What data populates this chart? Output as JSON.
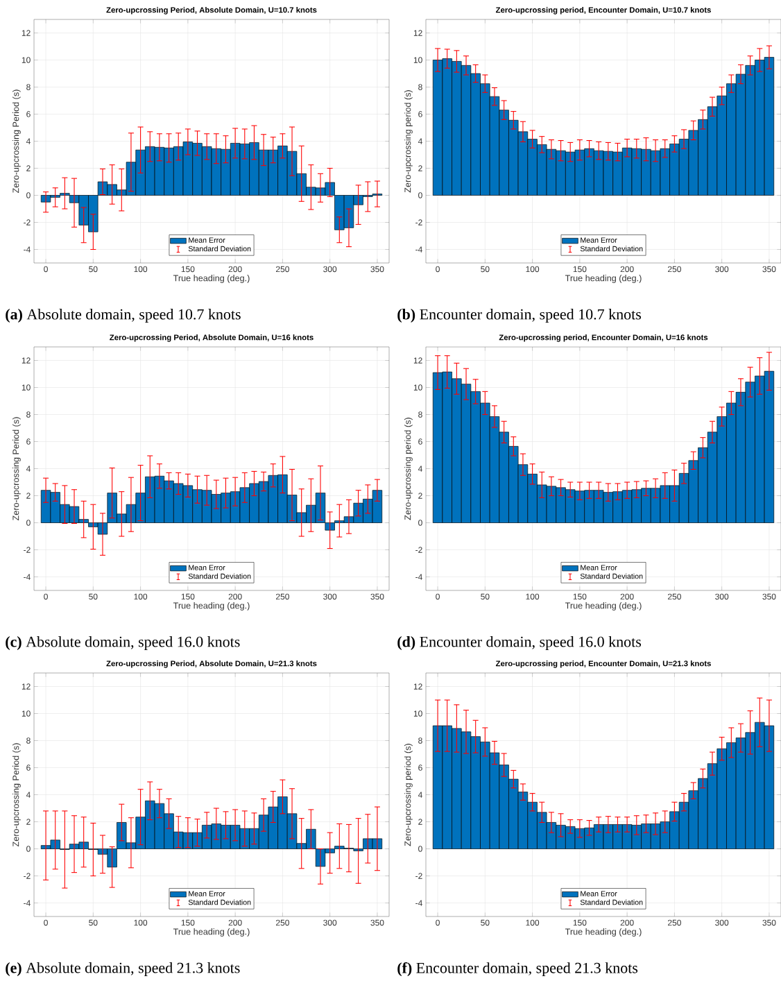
{
  "chart_data": [
    {
      "type": "bar",
      "title": "Zero-upcrossing Period, Absolute Domain, U=10.7 knots",
      "xlabel": "True heading (deg.)",
      "ylabel": "Zero-upcrossing Period (s)",
      "x": [
        0,
        10,
        20,
        30,
        40,
        50,
        60,
        70,
        80,
        90,
        100,
        110,
        120,
        130,
        140,
        150,
        160,
        170,
        180,
        190,
        200,
        210,
        220,
        230,
        240,
        250,
        260,
        270,
        280,
        290,
        300,
        310,
        320,
        330,
        340,
        350
      ],
      "xlim": [
        -12.5,
        362.5
      ],
      "ylim": [
        -5,
        13
      ],
      "xticks": [
        0,
        50,
        100,
        150,
        200,
        250,
        300,
        350
      ],
      "yticks": [
        -4,
        -2,
        0,
        2,
        4,
        6,
        8,
        10,
        12
      ],
      "grid": true,
      "legend": "bottom",
      "annotations": [
        "Standard Deviation",
        "**(a)** Absolute domain, speed 10.7 knots"
      ],
      "series": [
        {
          "name": "Mean Error",
          "color": "#0072bd",
          "values": [
            -0.5,
            -0.15,
            0.15,
            -0.55,
            -2.2,
            -2.7,
            1.0,
            0.8,
            0.4,
            2.45,
            3.35,
            3.6,
            3.55,
            3.5,
            3.6,
            3.95,
            3.85,
            3.6,
            3.45,
            3.4,
            3.85,
            3.8,
            3.9,
            3.35,
            3.35,
            3.65,
            3.25,
            1.6,
            0.6,
            0.55,
            0.95,
            -2.55,
            -2.4,
            -0.7,
            -0.1,
            0.1
          ],
          "errors": [
            0.75,
            0.7,
            1.15,
            1.8,
            1.3,
            1.3,
            0.95,
            1.45,
            1.55,
            2.15,
            1.7,
            1.1,
            1.0,
            1.05,
            1.0,
            0.95,
            0.9,
            0.95,
            1.1,
            1.0,
            1.1,
            1.1,
            1.25,
            1.15,
            0.95,
            0.9,
            1.8,
            2.05,
            1.65,
            1.05,
            1.05,
            0.95,
            1.4,
            1.45,
            1.1,
            0.95
          ]
        }
      ]
    },
    {
      "type": "bar",
      "title": "Zero-upcrossing period, Encounter Domain, U=10.7 knots",
      "xlabel": "True heading (deg.)",
      "ylabel": "Zero-upcrossing period (s)",
      "x": [
        0,
        10,
        20,
        30,
        40,
        50,
        60,
        70,
        80,
        90,
        100,
        110,
        120,
        130,
        140,
        150,
        160,
        170,
        180,
        190,
        200,
        210,
        220,
        230,
        240,
        250,
        260,
        270,
        280,
        290,
        300,
        310,
        320,
        330,
        340,
        350
      ],
      "xlim": [
        -12.5,
        362.5
      ],
      "ylim": [
        -5,
        13
      ],
      "xticks": [
        0,
        50,
        100,
        150,
        200,
        250,
        300,
        350
      ],
      "yticks": [
        -4,
        -2,
        0,
        2,
        4,
        6,
        8,
        10,
        12
      ],
      "grid": true,
      "legend": "bottom",
      "annotations": [
        "Standard Deviation",
        "**(b)** Encounter domain, speed 10.7 knots"
      ],
      "series": [
        {
          "name": "Mean Error",
          "color": "#0072bd",
          "values": [
            10.0,
            10.1,
            9.9,
            9.6,
            9.0,
            8.25,
            7.3,
            6.3,
            5.55,
            4.7,
            4.15,
            3.75,
            3.4,
            3.3,
            3.2,
            3.35,
            3.45,
            3.3,
            3.25,
            3.2,
            3.5,
            3.45,
            3.4,
            3.3,
            3.45,
            3.8,
            4.15,
            4.8,
            5.6,
            6.55,
            7.35,
            8.25,
            8.95,
            9.6,
            10.0,
            10.2
          ],
          "errors": [
            0.85,
            0.7,
            0.8,
            0.7,
            0.65,
            0.65,
            0.65,
            0.7,
            0.65,
            0.75,
            0.65,
            0.6,
            0.7,
            0.75,
            0.7,
            0.75,
            0.6,
            0.65,
            0.65,
            0.65,
            0.65,
            0.7,
            0.85,
            0.8,
            0.65,
            0.6,
            0.7,
            0.7,
            0.7,
            0.7,
            0.65,
            0.65,
            0.7,
            0.7,
            0.85,
            0.85
          ]
        }
      ]
    },
    {
      "type": "bar",
      "title": "Zero-upcrossing Period, Absolute Domain, U=16 knots",
      "xlabel": "True heading (deg.)",
      "ylabel": "Zero-upcrossing Period (s)",
      "x": [
        0,
        10,
        20,
        30,
        40,
        50,
        60,
        70,
        80,
        90,
        100,
        110,
        120,
        130,
        140,
        150,
        160,
        170,
        180,
        190,
        200,
        210,
        220,
        230,
        240,
        250,
        260,
        270,
        280,
        290,
        300,
        310,
        320,
        330,
        340,
        350
      ],
      "xlim": [
        -12.5,
        362.5
      ],
      "ylim": [
        -5,
        13
      ],
      "xticks": [
        0,
        50,
        100,
        150,
        200,
        250,
        300,
        350
      ],
      "yticks": [
        -4,
        -2,
        0,
        2,
        4,
        6,
        8,
        10,
        12
      ],
      "grid": true,
      "legend": "bottom",
      "annotations": [
        "Standard Deviation",
        "**(c)** Absolute domain, speed 16.0 knots"
      ],
      "series": [
        {
          "name": "Mean Error",
          "color": "#0072bd",
          "values": [
            2.4,
            2.25,
            1.35,
            1.2,
            0.25,
            -0.3,
            -0.85,
            2.2,
            0.65,
            1.35,
            2.2,
            3.4,
            3.45,
            3.1,
            2.9,
            2.75,
            2.45,
            2.4,
            2.1,
            2.2,
            2.3,
            2.6,
            2.9,
            3.05,
            3.5,
            3.55,
            2.05,
            0.75,
            1.3,
            2.2,
            -0.55,
            0.15,
            0.45,
            1.45,
            1.75,
            2.4
          ],
          "errors": [
            0.9,
            0.65,
            1.4,
            1.25,
            1.35,
            1.65,
            1.55,
            1.85,
            1.65,
            2.0,
            2.05,
            1.55,
            0.9,
            0.6,
            0.8,
            0.85,
            1.0,
            1.1,
            1.05,
            1.1,
            1.05,
            1.1,
            0.9,
            0.7,
            0.85,
            1.35,
            1.9,
            1.75,
            1.95,
            2.0,
            1.35,
            1.2,
            1.25,
            0.95,
            1.05,
            0.8
          ]
        }
      ]
    },
    {
      "type": "bar",
      "title": "Zero-upcrossing period, Encounter Domain, U=16 knots",
      "xlabel": "True heading (deg.)",
      "ylabel": "Zero-upcrossing period (s)",
      "x": [
        0,
        10,
        20,
        30,
        40,
        50,
        60,
        70,
        80,
        90,
        100,
        110,
        120,
        130,
        140,
        150,
        160,
        170,
        180,
        190,
        200,
        210,
        220,
        230,
        240,
        250,
        260,
        270,
        280,
        290,
        300,
        310,
        320,
        330,
        340,
        350
      ],
      "xlim": [
        -12.5,
        362.5
      ],
      "ylim": [
        -5,
        13
      ],
      "xticks": [
        0,
        50,
        100,
        150,
        200,
        250,
        300,
        350
      ],
      "yticks": [
        -4,
        -2,
        0,
        2,
        4,
        6,
        8,
        10,
        12
      ],
      "grid": true,
      "legend": "bottom",
      "annotations": [
        "Standard Deviation",
        "**(d)** Encounter domain, speed 16.0 knots"
      ],
      "series": [
        {
          "name": "Mean Error",
          "color": "#0072bd",
          "values": [
            11.1,
            11.15,
            10.65,
            10.25,
            9.7,
            8.85,
            7.85,
            6.7,
            5.65,
            4.3,
            3.6,
            2.8,
            2.7,
            2.6,
            2.45,
            2.35,
            2.4,
            2.4,
            2.25,
            2.3,
            2.4,
            2.45,
            2.55,
            2.55,
            2.75,
            2.75,
            3.65,
            4.6,
            5.55,
            6.7,
            7.85,
            8.85,
            9.65,
            10.4,
            10.85,
            11.2
          ],
          "errors": [
            1.25,
            1.2,
            1.15,
            1.15,
            0.9,
            0.85,
            0.8,
            0.8,
            0.7,
            0.8,
            0.75,
            0.95,
            0.7,
            0.6,
            0.55,
            0.65,
            0.6,
            0.6,
            0.65,
            0.6,
            0.6,
            0.6,
            0.55,
            0.7,
            0.95,
            1.15,
            0.75,
            0.65,
            0.75,
            0.8,
            0.7,
            0.85,
            1.0,
            1.1,
            1.35,
            1.4
          ]
        }
      ]
    },
    {
      "type": "bar",
      "title": "Zero-upcrossing Period, Absolute Domain, U=21.3 knots",
      "xlabel": "True heading (deg.)",
      "ylabel": "Zero-upcrossing Period (s)",
      "x": [
        0,
        10,
        20,
        30,
        40,
        50,
        60,
        70,
        80,
        90,
        100,
        110,
        120,
        130,
        140,
        150,
        160,
        170,
        180,
        190,
        200,
        210,
        220,
        230,
        240,
        250,
        260,
        270,
        280,
        290,
        300,
        310,
        320,
        330,
        340,
        350
      ],
      "xlim": [
        -12.5,
        362.5
      ],
      "ylim": [
        -5,
        13
      ],
      "xticks": [
        0,
        50,
        100,
        150,
        200,
        250,
        300,
        350
      ],
      "yticks": [
        -4,
        -2,
        0,
        2,
        4,
        6,
        8,
        10,
        12
      ],
      "grid": true,
      "legend": "bottom",
      "annotations": [
        "Standard Deviation",
        "**(e)** Absolute domain, speed 21.3 knots"
      ],
      "series": [
        {
          "name": "Mean Error",
          "color": "#0072bd",
          "values": [
            0.25,
            0.65,
            -0.05,
            0.35,
            0.5,
            -0.05,
            -0.4,
            -1.35,
            1.95,
            0.45,
            2.35,
            3.55,
            3.35,
            2.6,
            1.25,
            1.2,
            1.2,
            1.75,
            1.85,
            1.75,
            1.75,
            1.5,
            1.5,
            2.5,
            3.1,
            3.85,
            2.6,
            0.4,
            1.45,
            -1.3,
            -0.3,
            0.2,
            0.05,
            -0.15,
            0.75,
            0.75
          ],
          "errors": [
            2.55,
            2.15,
            2.85,
            2.1,
            1.85,
            1.95,
            1.4,
            1.5,
            1.35,
            1.85,
            2.05,
            1.4,
            1.05,
            1.1,
            1.15,
            1.1,
            1.0,
            0.95,
            1.15,
            1.0,
            1.15,
            1.3,
            1.15,
            1.2,
            1.15,
            1.25,
            1.85,
            1.85,
            1.45,
            1.3,
            1.5,
            1.65,
            1.75,
            2.4,
            1.8,
            2.35
          ]
        }
      ]
    },
    {
      "type": "bar",
      "title": "Zero-upcrossing period, Encounter Domain, U=21.3 knots",
      "xlabel": "True heading (deg.)",
      "ylabel": "Zero-upcrossing period (s)",
      "x": [
        0,
        10,
        20,
        30,
        40,
        50,
        60,
        70,
        80,
        90,
        100,
        110,
        120,
        130,
        140,
        150,
        160,
        170,
        180,
        190,
        200,
        210,
        220,
        230,
        240,
        250,
        260,
        270,
        280,
        290,
        300,
        310,
        320,
        330,
        340,
        350
      ],
      "xlim": [
        -12.5,
        362.5
      ],
      "ylim": [
        -5,
        13
      ],
      "xticks": [
        0,
        50,
        100,
        150,
        200,
        250,
        300,
        350
      ],
      "yticks": [
        -4,
        -2,
        0,
        2,
        4,
        6,
        8,
        10,
        12
      ],
      "grid": true,
      "legend": "bottom",
      "annotations": [
        "Standard Deviation",
        "**(f)** Encounter domain, speed 21.3 knots"
      ],
      "series": [
        {
          "name": "Mean Error",
          "color": "#0072bd",
          "values": [
            9.1,
            9.1,
            8.9,
            8.65,
            8.3,
            7.9,
            7.1,
            6.2,
            5.15,
            4.2,
            3.45,
            2.7,
            1.95,
            1.75,
            1.65,
            1.5,
            1.55,
            1.8,
            1.8,
            1.8,
            1.8,
            1.75,
            1.85,
            1.85,
            2.0,
            2.75,
            3.45,
            4.3,
            5.2,
            6.3,
            7.4,
            7.85,
            8.2,
            8.6,
            9.35,
            9.1
          ],
          "errors": [
            1.9,
            1.9,
            1.75,
            1.6,
            1.2,
            1.05,
            0.85,
            0.85,
            0.65,
            0.6,
            0.65,
            0.75,
            0.75,
            0.85,
            0.5,
            0.65,
            0.55,
            0.55,
            0.6,
            0.55,
            0.55,
            0.7,
            0.65,
            0.8,
            0.8,
            0.7,
            0.65,
            0.6,
            0.7,
            0.85,
            0.85,
            1.1,
            1.05,
            1.6,
            1.8,
            1.9
          ]
        }
      ]
    }
  ]
}
